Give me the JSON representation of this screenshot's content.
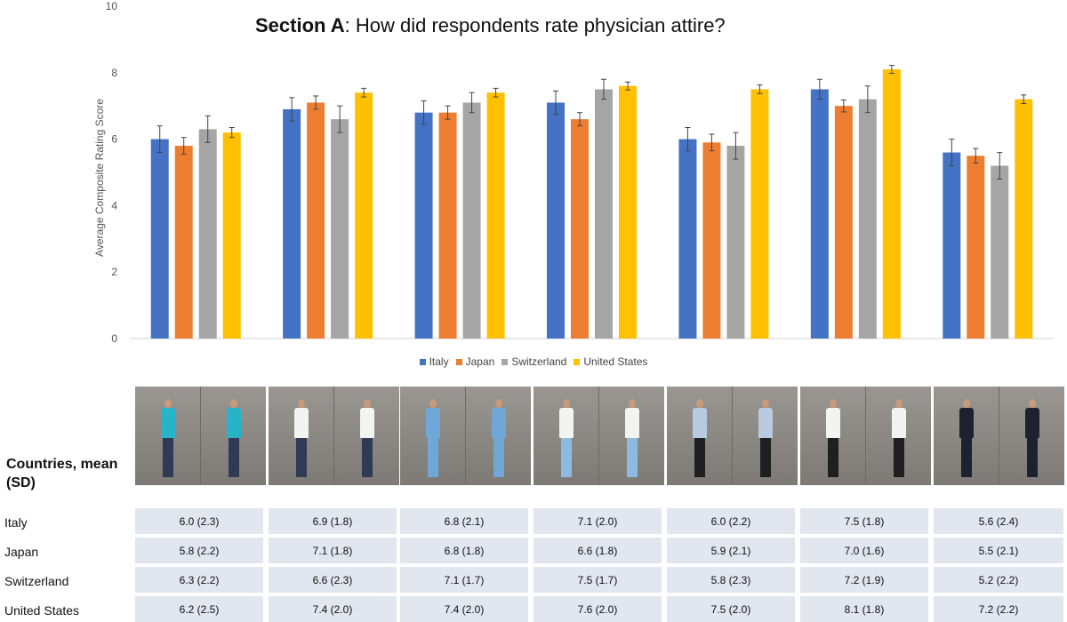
{
  "title_bold": "Section A",
  "title_rest": ": How did respondents rate physician attire?",
  "colors": {
    "Italy": "#4472c4",
    "Japan": "#ed7d31",
    "Switzerland": "#a5a5a5",
    "United States": "#ffc000"
  },
  "chart_data": {
    "type": "bar",
    "title": "Section A: How did respondents rate physician attire?",
    "ylabel": "Average Composite Rating Score",
    "ylim": [
      0,
      10
    ],
    "yticks": [
      0,
      2,
      4,
      6,
      8,
      10
    ],
    "grid": false,
    "legend_position": "bottom",
    "error_bars": true,
    "categories": [
      "",
      "",
      "",
      "",
      "",
      "",
      ""
    ],
    "series": [
      {
        "name": "Italy",
        "values": [
          6.0,
          6.9,
          6.8,
          7.1,
          6.0,
          7.5,
          5.6
        ],
        "err": [
          0.4,
          0.35,
          0.35,
          0.35,
          0.35,
          0.3,
          0.4
        ]
      },
      {
        "name": "Japan",
        "values": [
          5.8,
          7.1,
          6.8,
          6.6,
          5.9,
          7.0,
          5.5
        ],
        "err": [
          0.25,
          0.2,
          0.2,
          0.2,
          0.25,
          0.18,
          0.22
        ]
      },
      {
        "name": "Switzerland",
        "values": [
          6.3,
          6.6,
          7.1,
          7.5,
          5.8,
          7.2,
          5.2
        ],
        "err": [
          0.4,
          0.4,
          0.3,
          0.3,
          0.4,
          0.4,
          0.4
        ]
      },
      {
        "name": "United States",
        "values": [
          6.2,
          7.4,
          7.4,
          7.6,
          7.5,
          8.1,
          7.2
        ],
        "err": [
          0.15,
          0.13,
          0.13,
          0.12,
          0.13,
          0.12,
          0.13
        ]
      }
    ]
  },
  "table": {
    "header": "Countries, mean (SD)",
    "rows": [
      {
        "country": "Italy",
        "cells": [
          "6.0 (2.3)",
          "6.9 (1.8)",
          "6.8 (2.1)",
          "7.1 (2.0)",
          "6.0 (2.2)",
          "7.5 (1.8)",
          "5.6 (2.4)"
        ]
      },
      {
        "country": "Japan",
        "cells": [
          "5.8 (2.2)",
          "7.1 (1.8)",
          "6.8 (1.8)",
          "6.6 (1.8)",
          "5.9 (2.1)",
          "7.0 (1.6)",
          "5.5 (2.1)"
        ]
      },
      {
        "country": "Switzerland",
        "cells": [
          "6.3 (2.2)",
          "6.6 (2.3)",
          "7.1 (1.7)",
          "7.5 (1.7)",
          "5.8 (2.3)",
          "7.2 (1.9)",
          "5.2 (2.2)"
        ]
      },
      {
        "country": "United States",
        "cells": [
          "6.2 (2.5)",
          "7.4 (2.0)",
          "7.4 (2.0)",
          "7.6 (2.0)",
          "7.5 (2.0)",
          "8.1 (1.8)",
          "7.2 (2.2)"
        ]
      }
    ]
  },
  "photos": [
    {
      "top_icon": "casual-attire-photo",
      "top": "#27b4c9",
      "legs": "#2f3a55"
    },
    {
      "top_icon": "white-coat-attire-photo",
      "top": "#f3f3f1",
      "legs": "#2f3a55"
    },
    {
      "top_icon": "scrubs-attire-photo",
      "top": "#6fa8d6",
      "legs": "#6fa8d6"
    },
    {
      "top_icon": "white-coat-scrubs-attire-photo",
      "top": "#f3f3f1",
      "legs": "#8dbbe0"
    },
    {
      "top_icon": "business-attire-photo",
      "top": "#b8cbe0",
      "legs": "#1f1f22"
    },
    {
      "top_icon": "white-coat-business-attire-photo",
      "top": "#f3f3f1",
      "legs": "#1f1f22"
    },
    {
      "top_icon": "suit-attire-photo",
      "top": "#1e2230",
      "legs": "#1e2230"
    }
  ]
}
